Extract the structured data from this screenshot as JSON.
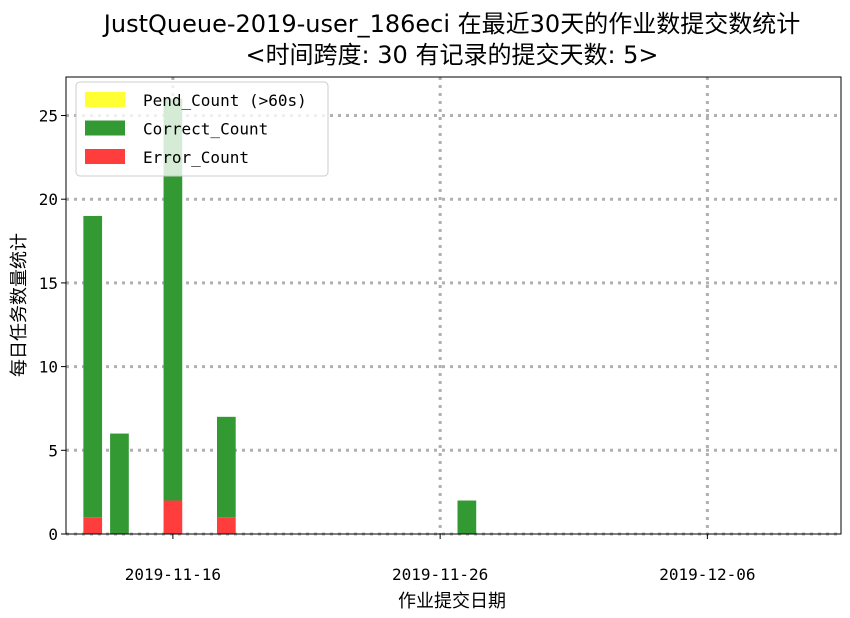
{
  "chart_data": {
    "type": "bar",
    "stacked": true,
    "title_line1": "JustQueue-2019-user_186eci 在最近30天的作业数提交数统计",
    "title_line2": "<时间跨度: 30  有记录的提交天数: 5>",
    "xlabel": "作业提交日期",
    "ylabel": "每日任务数量统计",
    "x": [
      "2019-11-13",
      "2019-11-14",
      "2019-11-16",
      "2019-11-18",
      "2019-11-27"
    ],
    "x_ticks": [
      "2019-11-16",
      "2019-11-26",
      "2019-12-06"
    ],
    "xlim": [
      "2019-11-12",
      "2019-12-11"
    ],
    "y_ticks": [
      0,
      5,
      10,
      15,
      20,
      25
    ],
    "ylim": [
      0,
      27.3
    ],
    "grid": true,
    "legend_position": "top-left",
    "series": [
      {
        "name": "Error_Count",
        "color": "#ff3d3d",
        "values": [
          1,
          0,
          2,
          1,
          0
        ]
      },
      {
        "name": "Correct_Count",
        "color": "#339933",
        "values": [
          18,
          6,
          24,
          6,
          2
        ]
      },
      {
        "name": "Pend_Count (>60s)",
        "color": "#ffff33",
        "values": [
          0,
          0,
          0,
          0,
          0
        ]
      }
    ],
    "legend_order": [
      "Pend_Count (>60s)",
      "Correct_Count",
      "Error_Count"
    ]
  }
}
